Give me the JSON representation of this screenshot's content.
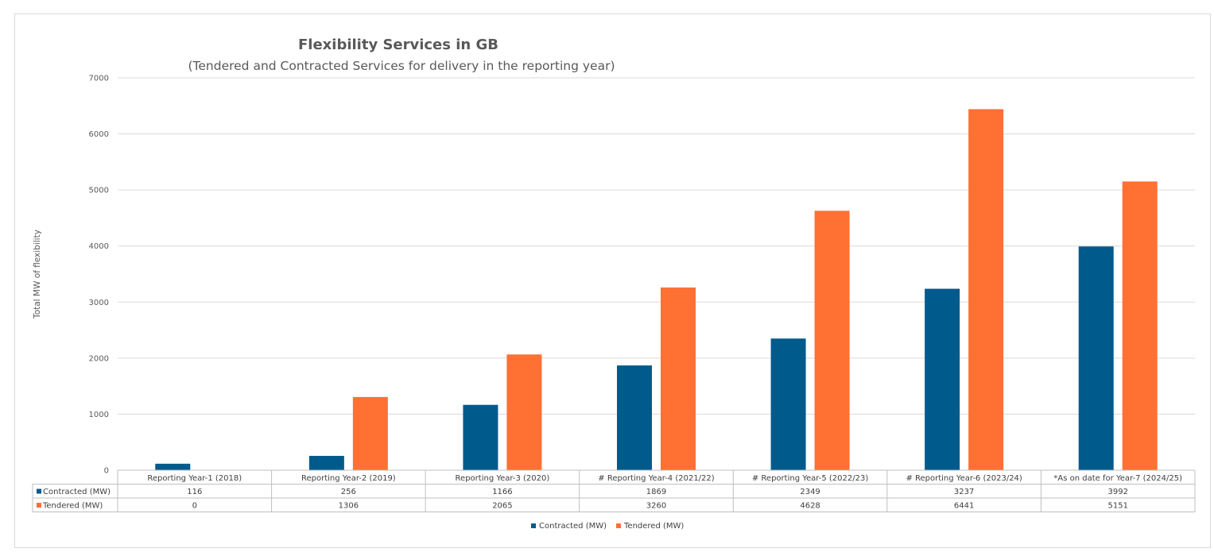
{
  "chart_data": {
    "type": "bar",
    "title": "Flexibility Services in GB",
    "subtitle": "(Tendered and Contracted Services for delivery in the reporting year)",
    "ylabel": "Total MW of flexibility",
    "xlabel": "",
    "ylim": [
      0,
      7000
    ],
    "yticks": [
      "0",
      "1000",
      "2000",
      "3000",
      "4000",
      "5000",
      "6000",
      "7000"
    ],
    "grid": true,
    "legend_position": "bottom",
    "categories": [
      "Reporting Year-1 (2018)",
      "Reporting Year-2 (2019)",
      "Reporting Year-3 (2020)",
      "# Reporting Year-4 (2021/22)",
      "# Reporting Year-5 (2022/23)",
      "# Reporting Year-6 (2023/24)",
      "*As on date for Year-7 (2024/25)"
    ],
    "series": [
      {
        "name": "Contracted (MW)",
        "color": "#005a8c",
        "values": [
          116,
          256,
          1166,
          1869,
          2349,
          3237,
          3992
        ]
      },
      {
        "name": "Tendered (MW)",
        "color": "#ff7033",
        "values": [
          0,
          1306,
          2065,
          3260,
          4628,
          6441,
          5151
        ]
      }
    ],
    "table_rows": [
      {
        "label": "Contracted (MW)",
        "cells": [
          "116",
          "256",
          "1166",
          "1869",
          "2349",
          "3237",
          "3992"
        ]
      },
      {
        "label": "Tendered (MW)",
        "cells": [
          "0",
          "1306",
          "2065",
          "3260",
          "4628",
          "6441",
          "5151"
        ]
      }
    ],
    "colors": {
      "gridline": "#d9d9d9",
      "text": "#595959"
    }
  }
}
